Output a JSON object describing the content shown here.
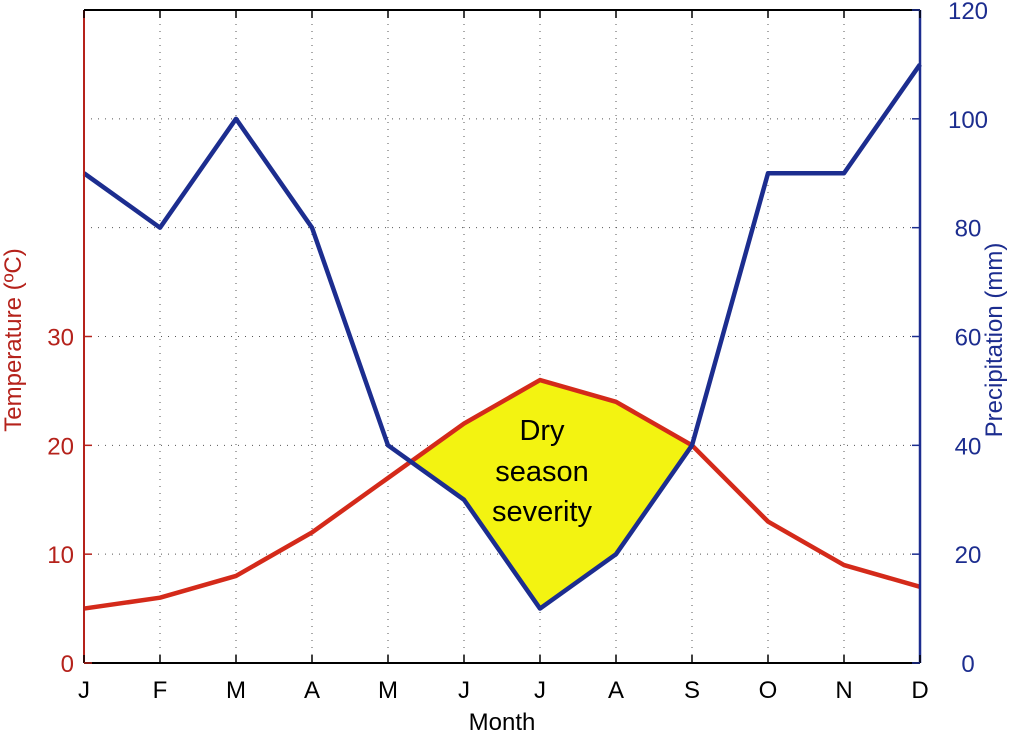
{
  "chart_data": {
    "type": "line",
    "title": "",
    "xlabel": "Month",
    "ylabel_left": "Temperature (ºC)",
    "ylabel_right": "Precipitation (mm)",
    "categories": [
      "J",
      "F",
      "M",
      "A",
      "M",
      "J",
      "J",
      "A",
      "S",
      "O",
      "N",
      "D"
    ],
    "left_ticks": [
      "0",
      "10",
      "20",
      "30"
    ],
    "right_ticks": [
      "0",
      "20",
      "40",
      "60",
      "80",
      "100",
      "120"
    ],
    "ylim_left": [
      0,
      60
    ],
    "ylim_right": [
      0,
      120
    ],
    "grid": true,
    "series": [
      {
        "axis": "left",
        "color": "#d42a1a",
        "values": [
          5,
          6,
          8,
          12,
          17,
          22,
          26,
          24,
          20,
          13,
          9,
          7
        ]
      },
      {
        "axis": "right",
        "color": "#1c2d8f",
        "values": [
          90,
          80,
          100,
          80,
          40,
          30,
          10,
          20,
          40,
          90,
          90,
          110
        ]
      }
    ],
    "fill_color": "#f3f311",
    "annotation": [
      "Dry",
      "season",
      "severity"
    ]
  }
}
